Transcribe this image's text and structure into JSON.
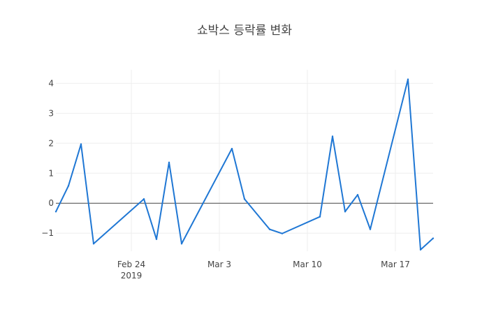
{
  "chart_data": {
    "type": "line",
    "title": "쇼박스 등락률 변화",
    "xlabel": "",
    "ylabel": "",
    "x_axis": {
      "type": "date",
      "range": [
        "2019-02-18",
        "2019-03-20"
      ],
      "ticks": [
        {
          "date": "2019-02-24",
          "label": "Feb 24",
          "sublabel": "2019"
        },
        {
          "date": "2019-03-03",
          "label": "Mar 3",
          "sublabel": ""
        },
        {
          "date": "2019-03-10",
          "label": "Mar 10",
          "sublabel": ""
        },
        {
          "date": "2019-03-17",
          "label": "Mar 17",
          "sublabel": ""
        }
      ]
    },
    "y_axis": {
      "range": [
        -1.6,
        4.45
      ],
      "ticks": [
        {
          "value": 4,
          "label": "4"
        },
        {
          "value": 3,
          "label": "3"
        },
        {
          "value": 2,
          "label": "2"
        },
        {
          "value": 1,
          "label": "1"
        },
        {
          "value": 0,
          "label": "0"
        },
        {
          "value": -1,
          "label": "−1"
        }
      ],
      "zero_line": true
    },
    "grid": true,
    "legend": "none",
    "series": [
      {
        "color": "#1f77d4",
        "points": [
          {
            "x": "2019-02-18",
            "y": -0.28
          },
          {
            "x": "2019-02-19",
            "y": 0.58
          },
          {
            "x": "2019-02-20",
            "y": 1.97
          },
          {
            "x": "2019-02-21",
            "y": -1.35
          },
          {
            "x": "2019-02-25",
            "y": 0.14
          },
          {
            "x": "2019-02-26",
            "y": -1.2
          },
          {
            "x": "2019-02-27",
            "y": 1.36
          },
          {
            "x": "2019-02-28",
            "y": -1.35
          },
          {
            "x": "2019-03-04",
            "y": 1.82
          },
          {
            "x": "2019-03-05",
            "y": 0.14
          },
          {
            "x": "2019-03-07",
            "y": -0.87
          },
          {
            "x": "2019-03-08",
            "y": -1.01
          },
          {
            "x": "2019-03-11",
            "y": -0.45
          },
          {
            "x": "2019-03-12",
            "y": 2.23
          },
          {
            "x": "2019-03-13",
            "y": -0.28
          },
          {
            "x": "2019-03-14",
            "y": 0.28
          },
          {
            "x": "2019-03-15",
            "y": -0.87
          },
          {
            "x": "2019-03-18",
            "y": 4.13
          },
          {
            "x": "2019-03-19",
            "y": -1.55
          },
          {
            "x": "2019-03-20",
            "y": -1.17
          }
        ]
      }
    ]
  }
}
